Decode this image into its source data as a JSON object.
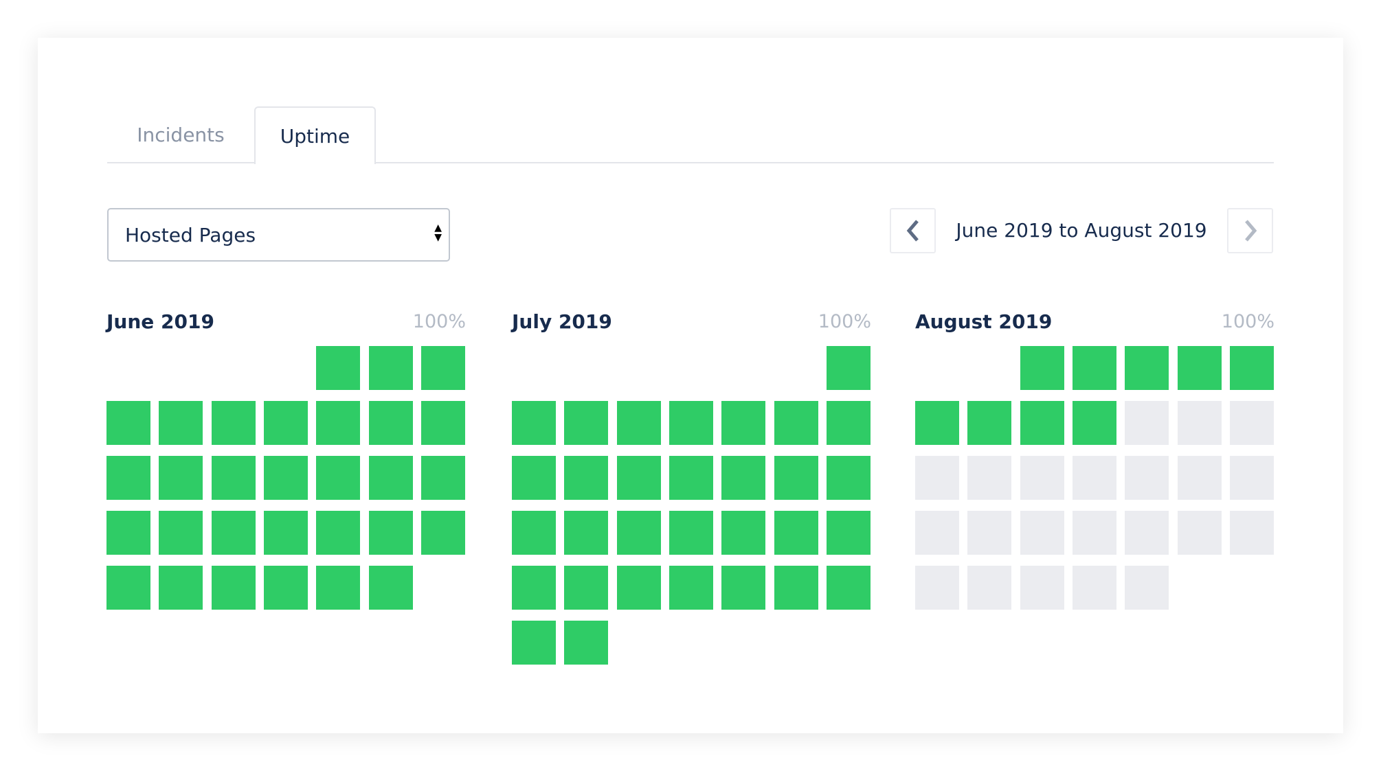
{
  "tabs": [
    {
      "label": "Incidents",
      "active": false
    },
    {
      "label": "Uptime",
      "active": true
    }
  ],
  "component_select": {
    "value": "Hosted Pages"
  },
  "date_range": {
    "label": "June 2019 to August 2019",
    "prev_icon": "chevron-left-icon",
    "next_icon": "chevron-right-icon"
  },
  "colors": {
    "operational": "#2fcc66",
    "no_data": "#ebecf0",
    "text": "#172b4d",
    "muted": "#b3bac5"
  },
  "months": [
    {
      "name": "June 2019",
      "uptime": "100%",
      "first_weekday": 4,
      "days": 30,
      "operational_days": 30
    },
    {
      "name": "July 2019",
      "uptime": "100%",
      "first_weekday": 6,
      "days": 31,
      "operational_days": 31
    },
    {
      "name": "August 2019",
      "uptime": "100%",
      "first_weekday": 2,
      "days": 31,
      "operational_days": 9
    }
  ]
}
